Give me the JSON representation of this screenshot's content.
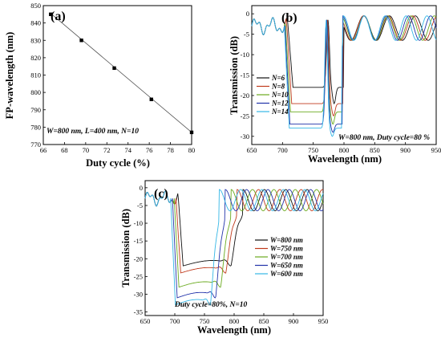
{
  "chart_data": [
    {
      "type": "scatter",
      "panel_label": "(a)",
      "xlabel": "Duty cycle (%)",
      "ylabel": "FP-wavelength (nm)",
      "xlim": [
        66,
        80
      ],
      "ylim": [
        770,
        850
      ],
      "xticks": [
        "66",
        "68",
        "70",
        "72",
        "74",
        "76",
        "78",
        "80"
      ],
      "yticks": [
        "770",
        "780",
        "790",
        "800",
        "810",
        "820",
        "830",
        "840",
        "850"
      ],
      "annotation": "W=800 nm, L=400 nm, N=10",
      "fit_line": {
        "x": [
          66.7,
          80.0
        ],
        "y": [
          845.5,
          777.0
        ]
      },
      "series": [
        {
          "name": "",
          "x": [
            66.7,
            69.6,
            72.7,
            76.2,
            80.0
          ],
          "y": [
            845,
            830,
            814,
            796,
            777
          ]
        }
      ]
    },
    {
      "type": "line",
      "panel_label": "(b)",
      "xlabel": "Wavelength (nm)",
      "ylabel": "Transmission (dB)",
      "xlim": [
        650,
        950
      ],
      "ylim": [
        -32,
        2
      ],
      "xticks": [
        "650",
        "700",
        "750",
        "800",
        "850",
        "900",
        "950"
      ],
      "yticks": [
        "0",
        "-5",
        "-10",
        "-15",
        "-20",
        "-25",
        "-30"
      ],
      "annotation": "W=800 nm, Duty cycle=80 %",
      "legend": "bottom-left",
      "series": [
        {
          "name": "N=6",
          "color": "#111111",
          "edge": 717,
          "floor": -18,
          "dip": 778,
          "dip_depth": -22,
          "upper": 790,
          "period": 42
        },
        {
          "name": "N=8",
          "color": "#c03a1c",
          "edge": 715,
          "floor": -22,
          "dip": 777,
          "dip_depth": -25,
          "upper": 792,
          "period": 40
        },
        {
          "name": "N=10",
          "color": "#6aaa1e",
          "edge": 713,
          "floor": -24,
          "dip": 776,
          "dip_depth": -27,
          "upper": 795,
          "period": 38
        },
        {
          "name": "N=12",
          "color": "#2233aa",
          "edge": 712,
          "floor": -27,
          "dip": 776,
          "dip_depth": -29,
          "upper": 797,
          "period": 36
        },
        {
          "name": "N=14",
          "color": "#35b7e6",
          "edge": 711,
          "floor": -28,
          "dip": 775,
          "dip_depth": -30,
          "upper": 799,
          "period": 34
        }
      ]
    },
    {
      "type": "line",
      "panel_label": "(c)",
      "xlabel": "Wavelength (nm)",
      "ylabel": "Transmission (dB)",
      "xlim": [
        650,
        950
      ],
      "ylim": [
        -36,
        2
      ],
      "xticks": [
        "650",
        "700",
        "750",
        "800",
        "850",
        "900",
        "950"
      ],
      "yticks": [
        "0",
        "-5",
        "-10",
        "-15",
        "-20",
        "-25",
        "-30",
        "-35"
      ],
      "annotation": "Duty cycle=80%,  N=10",
      "legend": "right",
      "series": [
        {
          "name": "W=800 nm",
          "color": "#111111",
          "edge": 714,
          "floor": -22,
          "upper": 815
        },
        {
          "name": "W=750 nm",
          "color": "#c03a1c",
          "edge": 710,
          "floor": -24,
          "upper": 805
        },
        {
          "name": "W=700 nm",
          "color": "#6aaa1e",
          "edge": 707,
          "floor": -28,
          "upper": 795
        },
        {
          "name": "W=650 nm",
          "color": "#2233aa",
          "edge": 704,
          "floor": -31,
          "upper": 785
        },
        {
          "name": "W=600 nm",
          "color": "#35b7e6",
          "edge": 701,
          "floor": -33,
          "upper": 775
        }
      ]
    }
  ]
}
